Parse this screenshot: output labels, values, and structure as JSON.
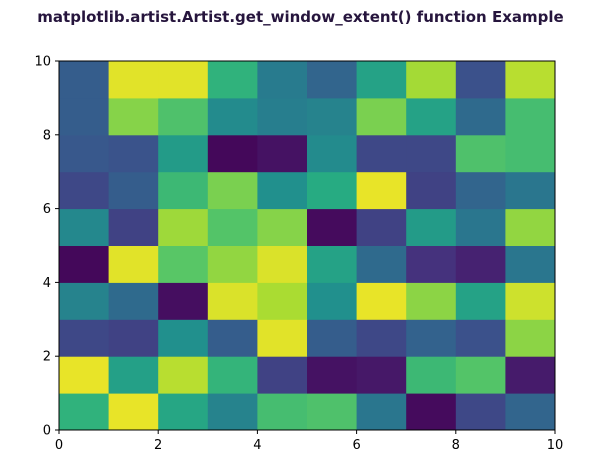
{
  "chart_data": {
    "type": "heatmap",
    "title": "matplotlib.artist.Artist.get_window_extent() function Example",
    "xlabel": "",
    "ylabel": "",
    "xlim": [
      0,
      10
    ],
    "ylim": [
      0,
      10
    ],
    "xticks": [
      "0",
      "2",
      "4",
      "6",
      "8",
      "10"
    ],
    "yticks": [
      "0",
      "2",
      "4",
      "6",
      "8",
      "10"
    ],
    "colormap": "viridis",
    "grid": false,
    "rows_bottom_to_top": [
      [
        0.65,
        0.97,
        0.6,
        0.45,
        0.7,
        0.72,
        0.4,
        0.03,
        0.22,
        0.33
      ],
      [
        0.97,
        0.57,
        0.9,
        0.66,
        0.2,
        0.05,
        0.07,
        0.68,
        0.73,
        0.08
      ],
      [
        0.22,
        0.2,
        0.5,
        0.3,
        0.96,
        0.3,
        0.22,
        0.32,
        0.25,
        0.83
      ],
      [
        0.45,
        0.35,
        0.04,
        0.95,
        0.88,
        0.5,
        0.97,
        0.83,
        0.58,
        0.93
      ],
      [
        0.02,
        0.96,
        0.74,
        0.84,
        0.95,
        0.58,
        0.35,
        0.15,
        0.1,
        0.4
      ],
      [
        0.47,
        0.2,
        0.86,
        0.73,
        0.82,
        0.03,
        0.2,
        0.55,
        0.4,
        0.84
      ],
      [
        0.22,
        0.3,
        0.68,
        0.8,
        0.5,
        0.62,
        0.97,
        0.2,
        0.33,
        0.4
      ],
      [
        0.28,
        0.26,
        0.55,
        0.02,
        0.05,
        0.48,
        0.22,
        0.22,
        0.72,
        0.7
      ],
      [
        0.3,
        0.82,
        0.72,
        0.48,
        0.43,
        0.45,
        0.8,
        0.58,
        0.35,
        0.7
      ],
      [
        0.3,
        0.96,
        0.96,
        0.65,
        0.42,
        0.33,
        0.58,
        0.87,
        0.25,
        0.9
      ]
    ]
  }
}
